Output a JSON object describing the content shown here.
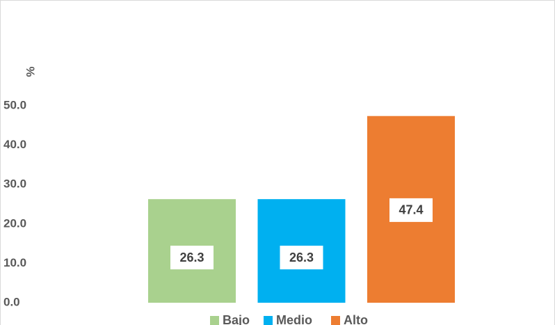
{
  "chart_data": {
    "type": "bar",
    "ylabel": "%",
    "series": [
      {
        "name": "Bajo",
        "color": "#a9d18e",
        "values": [
          26.3
        ]
      },
      {
        "name": "Medio",
        "color": "#00b0f0",
        "values": [
          26.3
        ]
      },
      {
        "name": "Alto",
        "color": "#ed7d31",
        "values": [
          47.4
        ]
      }
    ],
    "ylim": [
      0,
      50
    ],
    "yticks": [
      {
        "value": 0,
        "label": "0.0"
      },
      {
        "value": 10,
        "label": "10.0"
      },
      {
        "value": 20,
        "label": "20.0"
      },
      {
        "value": 30,
        "label": "30.0"
      },
      {
        "value": 40,
        "label": "40.0"
      },
      {
        "value": 50,
        "label": "50.0"
      }
    ],
    "grid": false,
    "legend": "bottom"
  }
}
